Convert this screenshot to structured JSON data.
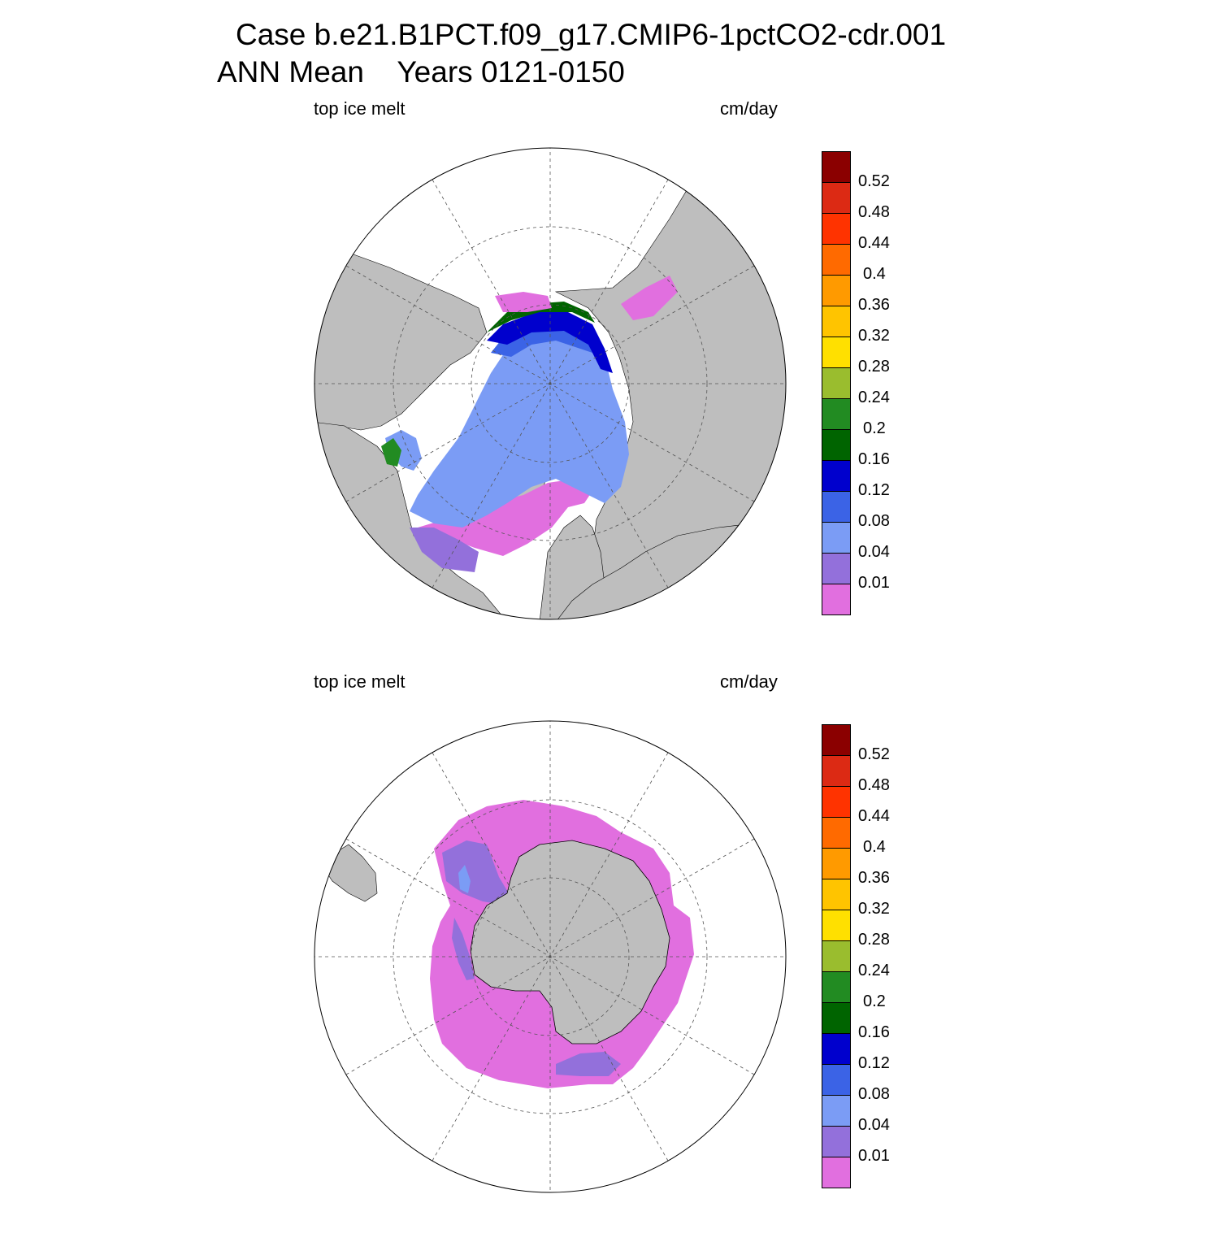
{
  "title": {
    "line1": "Case b.e21.B1PCT.f09_g17.CMIP6-1pctCO2-cdr.001",
    "line2": "ANN Mean    Years 0121-0150"
  },
  "colors": {
    "land": "#bebebe",
    "ocean": "#ffffff",
    "grid": "#555555"
  },
  "colorbar": {
    "levels": [
      "0.01",
      "0.04",
      "0.08",
      "0.12",
      "0.16",
      "0.2",
      "0.24",
      "0.28",
      "0.32",
      "0.36",
      "0.4",
      "0.44",
      "0.48",
      "0.52"
    ],
    "colors": [
      "#e16fdf",
      "#9370db",
      "#7b9cf5",
      "#3b63e6",
      "#0000cd",
      "#006400",
      "#228b22",
      "#9abd2e",
      "#ffe000",
      "#ffc400",
      "#ff9a00",
      "#ff6a00",
      "#ff3300",
      "#dc2a14",
      "#8b0000"
    ]
  },
  "panels": [
    {
      "id": "north",
      "hemisphere": "Northern",
      "left_label": "top ice melt",
      "right_label": "cm/day"
    },
    {
      "id": "south",
      "hemisphere": "Southern",
      "left_label": "top ice melt",
      "right_label": "cm/day"
    }
  ]
}
